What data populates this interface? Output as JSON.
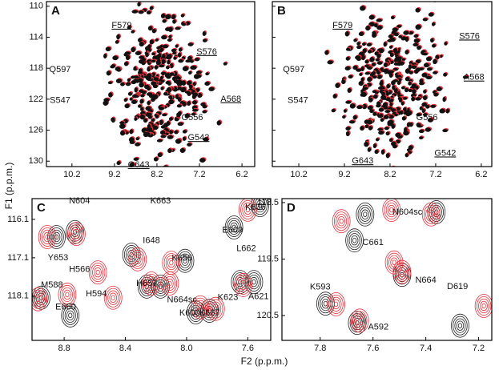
{
  "figure": {
    "xlabel": "F2 (p.p.m.)",
    "ylabel": "F1 (p.p.m.)"
  },
  "chart_data": [
    {
      "type": "scatter",
      "label": "A",
      "xlim": [
        10.8,
        5.9
      ],
      "ylim": [
        109.4,
        130.7
      ],
      "xticks": [
        10.2,
        9.2,
        8.2,
        7.2,
        6.2
      ],
      "yticks": [
        110,
        114,
        118,
        122,
        126,
        130
      ],
      "ytick_labels": true,
      "annotations": [
        {
          "text": "F579",
          "x": 9.03,
          "y": 112.5,
          "underline": true
        },
        {
          "text": "S576",
          "x": 7.03,
          "y": 115.9,
          "underline": true
        },
        {
          "text": "Q597",
          "x": 10.48,
          "y": 118.2
        },
        {
          "text": "S547",
          "x": 10.48,
          "y": 122.2
        },
        {
          "text": "A568",
          "x": 6.46,
          "y": 122.0,
          "underline": true
        },
        {
          "text": "G556",
          "x": 7.37,
          "y": 124.4
        },
        {
          "text": "G542",
          "x": 7.22,
          "y": 127.0,
          "underline": true
        },
        {
          "text": "G643",
          "x": 8.63,
          "y": 130.5,
          "underline": true
        }
      ]
    },
    {
      "type": "scatter",
      "label": "B",
      "xlim": [
        10.78,
        5.97
      ],
      "ylim": [
        109.4,
        130.7
      ],
      "xticks": [
        10.2,
        9.2,
        8.2,
        7.2,
        6.2
      ],
      "yticks": [
        110,
        114,
        118,
        122,
        126,
        130
      ],
      "ytick_labels": false,
      "annotations": [
        {
          "text": "F579",
          "x": 9.24,
          "y": 112.5,
          "underline": true
        },
        {
          "text": "S576",
          "x": 6.46,
          "y": 113.9,
          "underline": true
        },
        {
          "text": "Q597",
          "x": 10.31,
          "y": 118.2
        },
        {
          "text": "A568",
          "x": 6.36,
          "y": 119.2,
          "underline": true
        },
        {
          "text": "S547",
          "x": 10.22,
          "y": 122.2
        },
        {
          "text": "G556",
          "x": 7.39,
          "y": 124.4
        },
        {
          "text": "G542",
          "x": 6.99,
          "y": 129.0,
          "underline": true
        },
        {
          "text": "G643",
          "x": 8.8,
          "y": 130.0,
          "underline": true
        }
      ]
    },
    {
      "type": "contour",
      "label": "C",
      "xlim": [
        9.01,
        7.45
      ],
      "ylim": [
        115.56,
        119.25
      ],
      "xticks": [
        8.8,
        8.4,
        {
          "value": 8,
          "label": "8.0"
        },
        7.6
      ],
      "yticks": [
        116.1,
        117.1,
        118.1
      ],
      "ytick_labels": true,
      "series": [
        {
          "color": "#222222",
          "x": [
            8.73,
            8.36,
            8.26,
            8.17,
            7.94,
            7.85,
            7.65,
            7.56,
            7.69,
            7.52,
            8.95,
            8.85,
            8.76,
            8.01
          ],
          "values": [
            116.43,
            117.02,
            117.85,
            117.85,
            118.52,
            118.48,
            117.73,
            117.73,
            116.31,
            115.73,
            118.14,
            116.56,
            118.6,
            117.18
          ]
        },
        {
          "color": "#e8303a",
          "x": [
            8.72,
            8.32,
            8.23,
            8.11,
            7.91,
            7.81,
            8.91,
            8.78,
            8.48,
            8.58,
            8.1,
            7.6,
            7.63,
            8.97
          ],
          "values": [
            116.48,
            117.14,
            117.77,
            117.77,
            118.39,
            118.43,
            116.56,
            118.06,
            118.14,
            117.48,
            117.23,
            115.85,
            117.81,
            118.18
          ]
        }
      ],
      "annotations": [
        {
          "text": "N604",
          "x": 8.7,
          "y": 115.62
        },
        {
          "text": "K663",
          "x": 8.17,
          "y": 115.62
        },
        {
          "text": "K636",
          "x": 7.55,
          "y": 115.79
        },
        {
          "text": "E609",
          "x": 7.7,
          "y": 116.39
        },
        {
          "text": "Y653",
          "x": 8.84,
          "y": 117.1
        },
        {
          "text": "I648",
          "x": 8.23,
          "y": 116.66
        },
        {
          "text": "K656",
          "x": 8.03,
          "y": 117.12
        },
        {
          "text": "L662",
          "x": 7.61,
          "y": 116.87
        },
        {
          "text": "H566",
          "x": 8.7,
          "y": 117.41
        },
        {
          "text": "H657",
          "x": 8.26,
          "y": 117.77
        },
        {
          "text": "N664sc",
          "x": 8.03,
          "y": 118.2
        },
        {
          "text": "H594",
          "x": 8.59,
          "y": 118.04
        },
        {
          "text": "M588",
          "x": 8.88,
          "y": 117.81
        },
        {
          "text": "E660",
          "x": 8.79,
          "y": 118.39
        },
        {
          "text": "K623",
          "x": 7.73,
          "y": 118.14
        },
        {
          "text": "A621",
          "x": 7.53,
          "y": 118.12
        },
        {
          "text": "K667",
          "x": 7.85,
          "y": 118.54
        },
        {
          "text": "K600",
          "x": 7.98,
          "y": 118.54
        }
      ]
    },
    {
      "type": "contour",
      "label": "D",
      "xlim": [
        7.945,
        7.15
      ],
      "ylim": [
        118.43,
        120.94
      ],
      "xticks": [
        7.8,
        7.6,
        7.4,
        7.2
      ],
      "yticks": [
        118.5,
        119.5,
        120.5
      ],
      "ytick_labels": true,
      "series": [
        {
          "color": "#222222",
          "x": [
            7.63,
            7.36,
            7.67,
            7.49,
            7.78,
            7.66,
            7.27
          ],
          "values": [
            118.71,
            118.67,
            119.17,
            119.78,
            120.29,
            120.63,
            120.68
          ]
        },
        {
          "color": "#e8303a",
          "x": [
            7.72,
            7.53,
            7.38,
            7.49,
            7.74,
            7.65,
            7.18,
            7.52
          ],
          "values": [
            118.83,
            118.63,
            118.71,
            119.73,
            120.3,
            120.59,
            120.33,
            119.56
          ]
        }
      ],
      "annotations": [
        {
          "text": "N604sc",
          "x": 7.47,
          "y": 118.67
        },
        {
          "text": "C661",
          "x": 7.6,
          "y": 119.21
        },
        {
          "text": "N664",
          "x": 7.4,
          "y": 119.88
        },
        {
          "text": "K593",
          "x": 7.8,
          "y": 120.0
        },
        {
          "text": "A592",
          "x": 7.58,
          "y": 120.71
        },
        {
          "text": "D619",
          "x": 7.28,
          "y": 119.99
        }
      ]
    }
  ]
}
